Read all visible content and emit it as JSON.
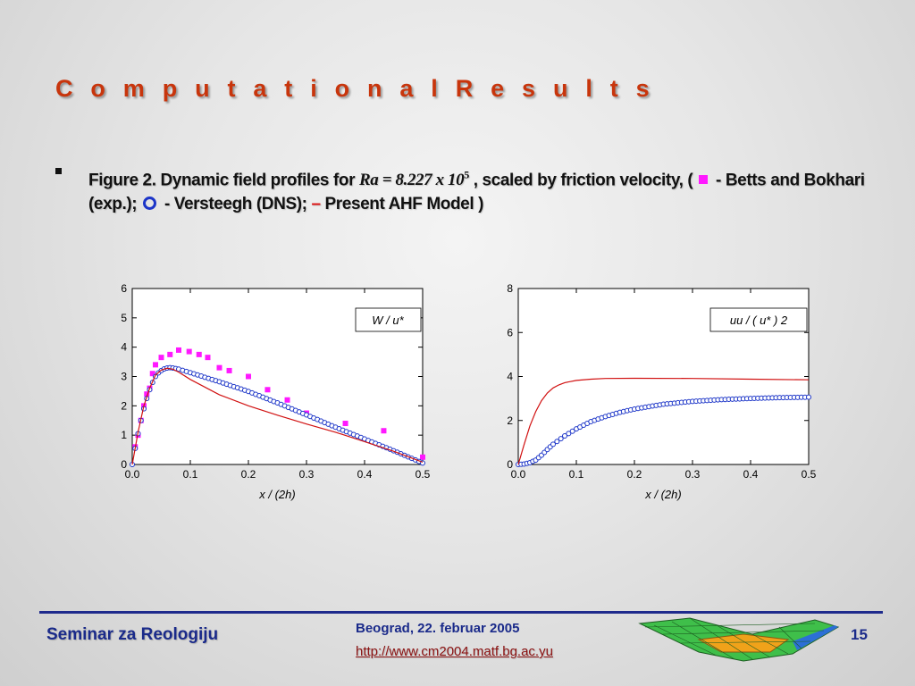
{
  "slide": {
    "title": "C o m p u t a t i o n a l   R e s u l t s",
    "bullet": {
      "part1": "Figure 2. Dynamic field profiles for ",
      "formula": "Ra = 8.227 x 10",
      "formula_exp": "5",
      "part2": " , scaled by friction velocity, ( ",
      "legend1": " - Betts and Bokhari (exp.); ",
      "legend2": " - Versteegh (DNS); ",
      "legend3_dash": "–",
      "legend3": "  Present AHF Model )"
    }
  },
  "colors": {
    "title": "#c8350c",
    "exp": "#ff19ff",
    "dns": "#1c35c8",
    "model": "#d11111",
    "footer": "#1a2a8a"
  },
  "chart_data": [
    {
      "type": "line",
      "annotation": "W / u*",
      "xlabel": "x / (2h)",
      "ylabel": "",
      "xlim": [
        0,
        0.5
      ],
      "ylim": [
        0,
        6
      ],
      "xticks": [
        "0.0",
        "0.1",
        "0.2",
        "0.3",
        "0.4",
        "0.5"
      ],
      "yticks": [
        "0",
        "1",
        "2",
        "3",
        "4",
        "5",
        "6"
      ],
      "series": [
        {
          "kind": "squares",
          "color": "#ff19ff",
          "points": [
            [
              0.005,
              0.6
            ],
            [
              0.01,
              1.0
            ],
            [
              0.015,
              1.5
            ],
            [
              0.02,
              2.0
            ],
            [
              0.025,
              2.4
            ],
            [
              0.03,
              2.6
            ],
            [
              0.035,
              3.1
            ],
            [
              0.04,
              3.4
            ],
            [
              0.05,
              3.65
            ],
            [
              0.065,
              3.75
            ],
            [
              0.08,
              3.9
            ],
            [
              0.098,
              3.85
            ],
            [
              0.115,
              3.75
            ],
            [
              0.13,
              3.65
            ],
            [
              0.15,
              3.3
            ],
            [
              0.167,
              3.2
            ],
            [
              0.2,
              3.0
            ],
            [
              0.233,
              2.55
            ],
            [
              0.267,
              2.2
            ],
            [
              0.3,
              1.75
            ],
            [
              0.367,
              1.4
            ],
            [
              0.433,
              1.15
            ],
            [
              0.5,
              0.25
            ]
          ]
        },
        {
          "kind": "circles",
          "color": "#1c35c8",
          "points": [
            [
              0.0,
              0.0
            ],
            [
              0.005,
              0.55
            ],
            [
              0.01,
              1.05
            ],
            [
              0.015,
              1.5
            ],
            [
              0.02,
              1.9
            ],
            [
              0.025,
              2.25
            ],
            [
              0.03,
              2.55
            ],
            [
              0.035,
              2.8
            ],
            [
              0.04,
              3.0
            ],
            [
              0.045,
              3.12
            ],
            [
              0.05,
              3.2
            ],
            [
              0.055,
              3.26
            ],
            [
              0.06,
              3.29
            ],
            [
              0.065,
              3.3
            ],
            [
              0.07,
              3.29
            ],
            [
              0.08,
              3.25
            ],
            [
              0.1,
              3.13
            ],
            [
              0.15,
              2.82
            ],
            [
              0.2,
              2.49
            ],
            [
              0.25,
              2.1
            ],
            [
              0.3,
              1.69
            ],
            [
              0.35,
              1.27
            ],
            [
              0.4,
              0.87
            ],
            [
              0.45,
              0.47
            ],
            [
              0.5,
              0.05
            ]
          ]
        },
        {
          "kind": "line",
          "color": "#d11111",
          "points": [
            [
              0.0,
              0.0
            ],
            [
              0.01,
              1.1
            ],
            [
              0.02,
              2.0
            ],
            [
              0.03,
              2.6
            ],
            [
              0.04,
              3.05
            ],
            [
              0.05,
              3.22
            ],
            [
              0.06,
              3.28
            ],
            [
              0.07,
              3.25
            ],
            [
              0.08,
              3.15
            ],
            [
              0.1,
              2.9
            ],
            [
              0.15,
              2.38
            ],
            [
              0.2,
              2.0
            ],
            [
              0.25,
              1.68
            ],
            [
              0.3,
              1.38
            ],
            [
              0.35,
              1.1
            ],
            [
              0.4,
              0.78
            ],
            [
              0.45,
              0.45
            ],
            [
              0.5,
              0.08
            ]
          ]
        }
      ]
    },
    {
      "type": "line",
      "annotation": "uu / ( u* ) 2",
      "xlabel": "x / (2h)",
      "ylabel": "",
      "xlim": [
        0,
        0.5
      ],
      "ylim": [
        0,
        8
      ],
      "xticks": [
        "0.0",
        "0.1",
        "0.2",
        "0.3",
        "0.4",
        "0.5"
      ],
      "yticks": [
        "0",
        "2",
        "4",
        "6",
        "8"
      ],
      "series": [
        {
          "kind": "circles",
          "color": "#1c35c8",
          "points": [
            [
              0.0,
              0.0
            ],
            [
              0.01,
              0.02
            ],
            [
              0.02,
              0.08
            ],
            [
              0.03,
              0.2
            ],
            [
              0.04,
              0.42
            ],
            [
              0.05,
              0.68
            ],
            [
              0.06,
              0.92
            ],
            [
              0.08,
              1.3
            ],
            [
              0.1,
              1.62
            ],
            [
              0.125,
              1.95
            ],
            [
              0.15,
              2.18
            ],
            [
              0.175,
              2.37
            ],
            [
              0.2,
              2.52
            ],
            [
              0.25,
              2.74
            ],
            [
              0.3,
              2.87
            ],
            [
              0.35,
              2.95
            ],
            [
              0.4,
              3.0
            ],
            [
              0.45,
              3.04
            ],
            [
              0.5,
              3.06
            ]
          ]
        },
        {
          "kind": "line",
          "color": "#d11111",
          "points": [
            [
              0.0,
              0.0
            ],
            [
              0.01,
              0.9
            ],
            [
              0.02,
              1.75
            ],
            [
              0.03,
              2.4
            ],
            [
              0.04,
              2.9
            ],
            [
              0.05,
              3.25
            ],
            [
              0.06,
              3.48
            ],
            [
              0.07,
              3.62
            ],
            [
              0.08,
              3.72
            ],
            [
              0.1,
              3.82
            ],
            [
              0.125,
              3.88
            ],
            [
              0.15,
              3.91
            ],
            [
              0.2,
              3.92
            ],
            [
              0.3,
              3.91
            ],
            [
              0.4,
              3.88
            ],
            [
              0.5,
              3.85
            ]
          ]
        }
      ]
    }
  ],
  "footer": {
    "left": "Seminar za Reologiju",
    "date": "Beograd, 22. februar 2005",
    "url": "http://www.cm2004.matf.bg.ac.yu",
    "page": "15"
  }
}
